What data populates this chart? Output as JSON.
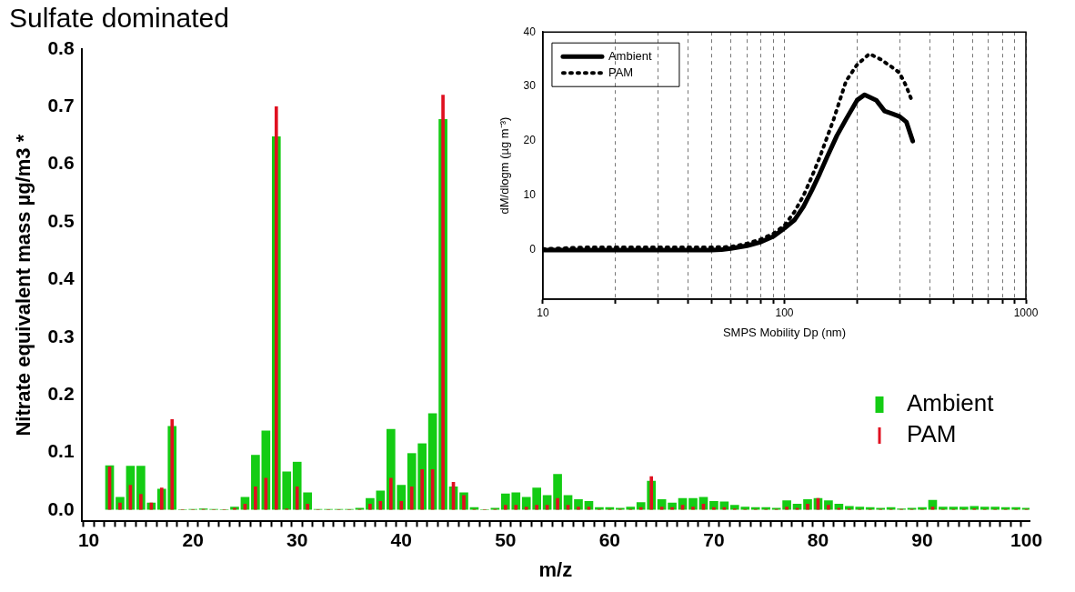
{
  "chart_data": [
    {
      "type": "bar",
      "title": "Sulfate dominated",
      "xlabel": "m/z",
      "ylabel": "Nitrate equivalent mass µg/m3 *",
      "x": [
        12,
        13,
        14,
        15,
        16,
        17,
        18,
        19,
        20,
        21,
        22,
        23,
        24,
        25,
        26,
        27,
        28,
        29,
        30,
        31,
        32,
        33,
        34,
        35,
        36,
        37,
        38,
        39,
        40,
        41,
        42,
        43,
        44,
        45,
        46,
        47,
        48,
        49,
        50,
        51,
        52,
        53,
        54,
        55,
        56,
        57,
        58,
        59,
        60,
        61,
        62,
        63,
        64,
        65,
        66,
        67,
        68,
        69,
        70,
        71,
        72,
        73,
        74,
        75,
        76,
        77,
        78,
        79,
        80,
        81,
        82,
        83,
        84,
        85,
        86,
        87,
        88,
        89,
        90,
        91,
        92,
        93,
        94,
        95,
        96,
        97,
        98,
        99,
        100
      ],
      "series": [
        {
          "name": "Ambient",
          "color": "#14cc14",
          "values": [
            0.077,
            0.022,
            0.076,
            0.076,
            0.012,
            0.036,
            0.145,
            0,
            0.001,
            0.002,
            0.001,
            0,
            0.005,
            0.022,
            0.095,
            0.137,
            0.648,
            0.066,
            0.083,
            0.03,
            0.001,
            0.001,
            0.001,
            0.001,
            0.003,
            0.02,
            0.033,
            0.14,
            0.043,
            0.098,
            0.115,
            0.167,
            0.678,
            0.04,
            0.03,
            0.004,
            0,
            0.003,
            0.028,
            0.03,
            0.022,
            0.038,
            0.025,
            0.062,
            0.025,
            0.018,
            0.015,
            0.004,
            0.004,
            0.003,
            0.005,
            0.013,
            0.05,
            0.018,
            0.012,
            0.02,
            0.02,
            0.022,
            0.015,
            0.014,
            0.008,
            0.005,
            0.004,
            0.004,
            0.003,
            0.016,
            0.01,
            0.018,
            0.02,
            0.016,
            0.01,
            0.006,
            0.005,
            0.004,
            0.003,
            0.004,
            0.002,
            0.003,
            0.004,
            0.017,
            0.005,
            0.005,
            0.005,
            0.006,
            0.005,
            0.005,
            0.004,
            0.004,
            0.003
          ]
        },
        {
          "name": "PAM",
          "color": "#e01020",
          "values": [
            0.075,
            0.012,
            0.043,
            0.027,
            0.012,
            0.038,
            0.157,
            0,
            0,
            0.001,
            0,
            0,
            0.003,
            0.01,
            0.04,
            0.055,
            0.7,
            0.002,
            0.04,
            0.01,
            0,
            0,
            0,
            0,
            0.001,
            0.01,
            0.015,
            0.055,
            0.015,
            0.04,
            0.07,
            0.07,
            0.72,
            0.048,
            0.025,
            0.001,
            0,
            0.001,
            0.008,
            0.008,
            0.005,
            0.008,
            0.008,
            0.02,
            0.008,
            0.005,
            0.005,
            0.001,
            0.001,
            0.001,
            0.001,
            0.004,
            0.058,
            0.005,
            0.004,
            0.008,
            0.005,
            0.01,
            0.004,
            0.004,
            0.002,
            0.001,
            0.001,
            0.001,
            0.001,
            0.005,
            0.003,
            0.01,
            0.02,
            0.008,
            0.003,
            0.002,
            0.001,
            0.001,
            0.001,
            0.001,
            0.001,
            0.001,
            0.001,
            0.005,
            0.001,
            0.001,
            0.001,
            0.002,
            0.001,
            0.001,
            0.001,
            0.001,
            0.001
          ]
        }
      ],
      "xlim": [
        9.3,
        100.3
      ],
      "ylim": [
        -0.02,
        0.8
      ],
      "xticks": [
        10,
        {
          "value": 11,
          "label": null
        },
        {
          "value": 12,
          "label": null
        },
        {
          "value": 13,
          "label": null
        },
        {
          "value": 14,
          "label": null
        },
        {
          "value": 15,
          "label": null
        },
        {
          "value": 16,
          "label": null
        },
        {
          "value": 17,
          "label": null
        },
        {
          "value": 18,
          "label": null
        },
        {
          "value": 19,
          "label": null
        },
        20,
        {
          "value": 21,
          "label": null
        },
        {
          "value": 22,
          "label": null
        },
        {
          "value": 23,
          "label": null
        },
        {
          "value": 24,
          "label": null
        },
        {
          "value": 25,
          "label": null
        },
        {
          "value": 26,
          "label": null
        },
        {
          "value": 27,
          "label": null
        },
        {
          "value": 28,
          "label": null
        },
        {
          "value": 29,
          "label": null
        },
        30,
        {
          "value": 31,
          "label": null
        },
        {
          "value": 32,
          "label": null
        },
        {
          "value": 33,
          "label": null
        },
        {
          "value": 34,
          "label": null
        },
        {
          "value": 35,
          "label": null
        },
        {
          "value": 36,
          "label": null
        },
        {
          "value": 37,
          "label": null
        },
        {
          "value": 38,
          "label": null
        },
        {
          "value": 39,
          "label": null
        },
        40,
        {
          "value": 41,
          "label": null
        },
        {
          "value": 42,
          "label": null
        },
        {
          "value": 43,
          "label": null
        },
        {
          "value": 44,
          "label": null
        },
        {
          "value": 45,
          "label": null
        },
        {
          "value": 46,
          "label": null
        },
        {
          "value": 47,
          "label": null
        },
        {
          "value": 48,
          "label": null
        },
        {
          "value": 49,
          "label": null
        },
        50,
        {
          "value": 51,
          "label": null
        },
        {
          "value": 52,
          "label": null
        },
        {
          "value": 53,
          "label": null
        },
        {
          "value": 54,
          "label": null
        },
        {
          "value": 55,
          "label": null
        },
        {
          "value": 56,
          "label": null
        },
        {
          "value": 57,
          "label": null
        },
        {
          "value": 58,
          "label": null
        },
        {
          "value": 59,
          "label": null
        },
        60,
        {
          "value": 61,
          "label": null
        },
        {
          "value": 62,
          "label": null
        },
        {
          "value": 63,
          "label": null
        },
        {
          "value": 64,
          "label": null
        },
        {
          "value": 65,
          "label": null
        },
        {
          "value": 66,
          "label": null
        },
        {
          "value": 67,
          "label": null
        },
        {
          "value": 68,
          "label": null
        },
        {
          "value": 69,
          "label": null
        },
        70,
        {
          "value": 71,
          "label": null
        },
        {
          "value": 72,
          "label": null
        },
        {
          "value": 73,
          "label": null
        },
        {
          "value": 74,
          "label": null
        },
        {
          "value": 75,
          "label": null
        },
        {
          "value": 76,
          "label": null
        },
        {
          "value": 77,
          "label": null
        },
        {
          "value": 78,
          "label": null
        },
        {
          "value": 79,
          "label": null
        },
        80,
        {
          "value": 81,
          "label": null
        },
        {
          "value": 82,
          "label": null
        },
        {
          "value": 83,
          "label": null
        },
        {
          "value": 84,
          "label": null
        },
        {
          "value": 85,
          "label": null
        },
        {
          "value": 86,
          "label": null
        },
        {
          "value": 87,
          "label": null
        },
        {
          "value": 88,
          "label": null
        },
        {
          "value": 89,
          "label": null
        },
        90,
        {
          "value": 91,
          "label": null
        },
        {
          "value": 92,
          "label": null
        },
        {
          "value": 93,
          "label": null
        },
        {
          "value": 94,
          "label": null
        },
        {
          "value": 95,
          "label": null
        },
        {
          "value": 96,
          "label": null
        },
        {
          "value": 97,
          "label": null
        },
        {
          "value": 98,
          "label": null
        },
        {
          "value": 99,
          "label": null
        },
        100
      ],
      "yticks": [
        {
          "value": 0,
          "label": "0.0"
        },
        {
          "value": 0.1,
          "label": "0.1"
        },
        {
          "value": 0.2,
          "label": "0.2"
        },
        {
          "value": 0.3,
          "label": "0.3"
        },
        {
          "value": 0.4,
          "label": "0.4"
        },
        {
          "value": 0.5,
          "label": "0.5"
        },
        {
          "value": 0.6,
          "label": "0.6"
        },
        {
          "value": 0.7,
          "label": "0.7"
        },
        {
          "value": 0.8,
          "label": "0.8"
        }
      ],
      "legend": "right"
    },
    {
      "type": "line",
      "xlabel": "SMPS Mobility Dp (nm)",
      "ylabel": "dM/dlogm (µg m⁻³)",
      "log": "x",
      "grid": "x",
      "legend": "top left",
      "series": [
        {
          "name": "Ambient",
          "color": "#000000",
          "line_style": "solid",
          "x": [
            10,
            15,
            20,
            30,
            40,
            50,
            55,
            60,
            70,
            80,
            90,
            100,
            110,
            120,
            130,
            140,
            150,
            165,
            180,
            200,
            215,
            240,
            260,
            280,
            300,
            320,
            340
          ],
          "values": [
            0,
            0,
            0,
            0,
            0,
            0,
            0.1,
            0.3,
            0.8,
            1.5,
            2.5,
            4,
            5.5,
            8,
            11,
            14,
            17,
            21,
            24,
            27.5,
            28.5,
            27.5,
            25.5,
            25,
            24.5,
            23.5,
            20
          ]
        },
        {
          "name": "PAM",
          "color": "#000000",
          "line_style": "dotted",
          "x": [
            10,
            15,
            20,
            30,
            40,
            50,
            60,
            70,
            80,
            90,
            100,
            110,
            120,
            130,
            140,
            160,
            180,
            200,
            225,
            250,
            280,
            300,
            320,
            340
          ],
          "values": [
            0.2,
            0.5,
            0.5,
            0.5,
            0.5,
            0.5,
            0.6,
            1.2,
            2,
            3,
            4.5,
            7,
            10,
            13.5,
            17,
            24,
            31,
            34,
            36,
            35,
            33.5,
            32.5,
            30,
            27
          ]
        }
      ],
      "xlim": [
        10,
        1000
      ],
      "ylim": [
        -9,
        40
      ],
      "xticks": [
        10,
        {
          "value": 20,
          "label": null
        },
        {
          "value": 30,
          "label": null
        },
        {
          "value": 40,
          "label": null
        },
        {
          "value": 50,
          "label": null
        },
        {
          "value": 60,
          "label": null
        },
        {
          "value": 70,
          "label": null
        },
        {
          "value": 80,
          "label": null
        },
        {
          "value": 90,
          "label": null
        },
        100,
        {
          "value": 200,
          "label": null
        },
        {
          "value": 300,
          "label": null
        },
        {
          "value": 400,
          "label": null
        },
        {
          "value": 500,
          "label": null
        },
        {
          "value": 600,
          "label": null
        },
        {
          "value": 700,
          "label": null
        },
        {
          "value": 800,
          "label": null
        },
        {
          "value": 900,
          "label": null
        },
        1000
      ],
      "yticks": [
        0,
        10,
        20,
        30,
        40
      ]
    }
  ]
}
